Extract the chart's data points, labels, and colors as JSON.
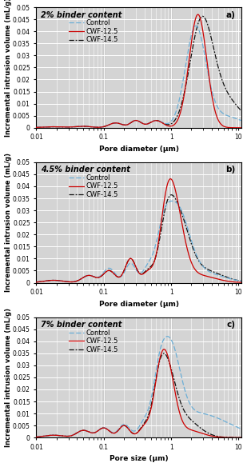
{
  "title_a": "2% binder content",
  "title_b": "4.5% binder content",
  "title_c": "7% binder content",
  "label_a": "a)",
  "label_b": "b)",
  "label_c": "c)",
  "xlabel_ab": "Pore diameter (μm)",
  "xlabel_c": "Pore size (μm)",
  "ylabel": "Incremental intrusion volume (mL/g)",
  "ylim": [
    0,
    0.05
  ],
  "xlim": [
    0.01,
    11
  ],
  "yticks": [
    0,
    0.005,
    0.01,
    0.015,
    0.02,
    0.025,
    0.03,
    0.035,
    0.04,
    0.045,
    0.05
  ],
  "vlines_a": [
    0.1,
    1.0
  ],
  "vlines_b": [
    0.1,
    1.0
  ],
  "vlines_c": [
    0.1,
    1.0
  ],
  "legend_labels": [
    "Control",
    "CWF-12.5",
    "CWF-14.5"
  ],
  "color_control": "#6baed6",
  "color_cwf125": "#cc0000",
  "color_cwf145": "#111111",
  "bg_color": "#d4d4d4",
  "title_fontsize": 7.0,
  "label_fontsize": 6.5,
  "tick_fontsize": 5.5,
  "legend_fontsize": 6.0
}
